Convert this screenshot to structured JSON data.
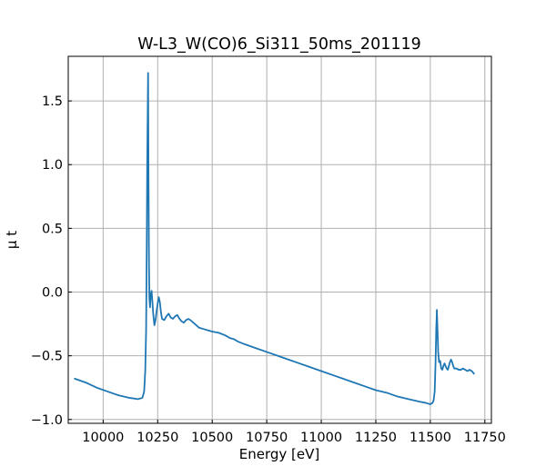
{
  "chart_data": {
    "type": "line",
    "title": "W-L3_W(CO)6_Si311_50ms_201119",
    "xlabel": "Energy [eV]",
    "ylabel": "μ t",
    "xlim": [
      9840,
      11780
    ],
    "ylim": [
      -1.03,
      1.85
    ],
    "xticks": [
      10000,
      10250,
      10500,
      10750,
      11000,
      11250,
      11500,
      11750
    ],
    "xtick_labels": [
      "10000",
      "10250",
      "10500",
      "10750",
      "11000",
      "11250",
      "11500",
      "11750"
    ],
    "yticks": [
      -1.0,
      -0.5,
      0.0,
      0.5,
      1.0,
      1.5
    ],
    "ytick_labels": [
      "−1.0",
      "−0.5",
      "0.0",
      "0.5",
      "1.0",
      "1.5"
    ],
    "grid": true,
    "legend": "none",
    "series": [
      {
        "color": "#1f77b4",
        "x": [
          9870,
          9920,
          9970,
          10020,
          10070,
          10120,
          10160,
          10180,
          10188,
          10193,
          10197,
          10200,
          10202,
          10204,
          10206,
          10208,
          10210,
          10212,
          10215,
          10218,
          10222,
          10226,
          10230,
          10235,
          10240,
          10245,
          10250,
          10255,
          10260,
          10265,
          10270,
          10280,
          10290,
          10300,
          10310,
          10320,
          10330,
          10340,
          10350,
          10360,
          10370,
          10380,
          10390,
          10400,
          10420,
          10440,
          10460,
          10480,
          10500,
          10530,
          10560,
          10580,
          10600,
          10620,
          10650,
          10700,
          10750,
          10800,
          10850,
          10900,
          10950,
          11000,
          11050,
          11100,
          11150,
          11200,
          11250,
          11300,
          11350,
          11400,
          11450,
          11480,
          11500,
          11510,
          11515,
          11520,
          11524,
          11527,
          11530,
          11533,
          11536,
          11540,
          11545,
          11550,
          11555,
          11560,
          11565,
          11570,
          11575,
          11580,
          11585,
          11590,
          11595,
          11600,
          11605,
          11610,
          11620,
          11630,
          11640,
          11650,
          11660,
          11670,
          11680,
          11690,
          11700
        ],
        "y": [
          -0.68,
          -0.71,
          -0.75,
          -0.78,
          -0.81,
          -0.83,
          -0.84,
          -0.83,
          -0.78,
          -0.62,
          -0.3,
          0.4,
          1.0,
          1.35,
          1.72,
          0.9,
          0.25,
          -0.05,
          -0.12,
          -0.02,
          0.01,
          -0.08,
          -0.18,
          -0.26,
          -0.22,
          -0.15,
          -0.09,
          -0.04,
          -0.08,
          -0.16,
          -0.21,
          -0.22,
          -0.19,
          -0.17,
          -0.2,
          -0.21,
          -0.19,
          -0.18,
          -0.21,
          -0.23,
          -0.24,
          -0.22,
          -0.21,
          -0.22,
          -0.25,
          -0.28,
          -0.29,
          -0.3,
          -0.31,
          -0.32,
          -0.34,
          -0.36,
          -0.37,
          -0.39,
          -0.41,
          -0.44,
          -0.47,
          -0.5,
          -0.53,
          -0.56,
          -0.59,
          -0.62,
          -0.65,
          -0.68,
          -0.71,
          -0.74,
          -0.77,
          -0.79,
          -0.82,
          -0.84,
          -0.86,
          -0.87,
          -0.88,
          -0.87,
          -0.85,
          -0.78,
          -0.55,
          -0.3,
          -0.14,
          -0.3,
          -0.47,
          -0.55,
          -0.54,
          -0.6,
          -0.61,
          -0.58,
          -0.56,
          -0.58,
          -0.6,
          -0.61,
          -0.58,
          -0.55,
          -0.53,
          -0.55,
          -0.58,
          -0.6,
          -0.6,
          -0.61,
          -0.61,
          -0.6,
          -0.61,
          -0.62,
          -0.61,
          -0.62,
          -0.64
        ]
      }
    ]
  }
}
